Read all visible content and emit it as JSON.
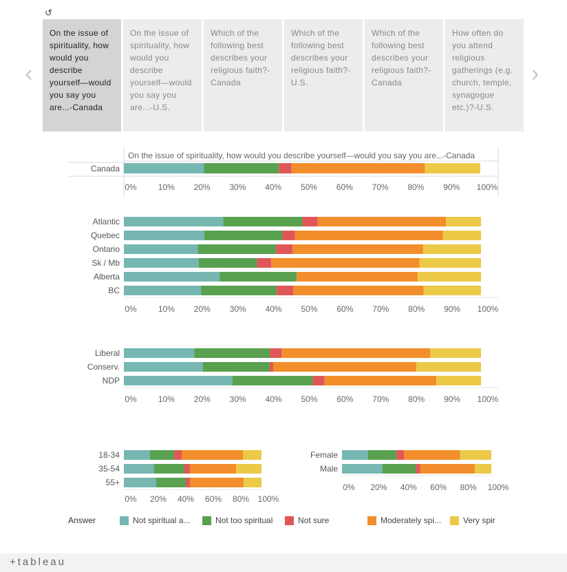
{
  "toolbar": {
    "revert_icon": "↺"
  },
  "nav": {
    "prev": "‹",
    "next": "›"
  },
  "tabs": [
    {
      "label": "On the issue of spirituality, how would you describe yourself—would you say you are...-Canada",
      "active": true
    },
    {
      "label": "On the issue of spirituality, how would you describe yourself—would you say you are...-U.S.",
      "active": false
    },
    {
      "label": "Which of the following best describes your religious faith?-Canada",
      "active": false
    },
    {
      "label": "Which of the following best describes your religious faith?-U.S.",
      "active": false
    },
    {
      "label": "Which of the following best describes your religious faith?-Canada",
      "active": false
    },
    {
      "label": "How often do you attend religious gatherings (e.g. church, temple, synagogue etc.)?-U.S.",
      "active": false
    }
  ],
  "legend": {
    "title": "Answer",
    "items": [
      {
        "label": "Not spiritual a...",
        "color": "#76b7b2"
      },
      {
        "label": "Not too spiritual",
        "color": "#59a14f"
      },
      {
        "label": "Not sure",
        "color": "#e15759"
      },
      {
        "label": "Moderately spi...",
        "color": "#f28e2b"
      },
      {
        "label": "Very spir",
        "color": "#edc948"
      }
    ]
  },
  "chart_data": [
    {
      "type": "bar",
      "stacked": true,
      "orientation": "horizontal",
      "title": "On the issue of spirituality, how would you describe yourself—would you say you are...-Canada",
      "categories": [
        "Canada"
      ],
      "series": [
        {
          "name": "Not spiritual a...",
          "values": [
            22.5
          ]
        },
        {
          "name": "Not too spiritual",
          "values": [
            21
          ]
        },
        {
          "name": "Not sure",
          "values": [
            3.5
          ]
        },
        {
          "name": "Moderately spi...",
          "values": [
            37.5
          ]
        },
        {
          "name": "Very spir",
          "values": [
            15.5
          ]
        }
      ],
      "ticks": [
        "0%",
        "10%",
        "20%",
        "30%",
        "40%",
        "50%",
        "60%",
        "70%",
        "80%",
        "90%",
        "100%"
      ],
      "xlim": [
        0,
        100
      ]
    },
    {
      "type": "bar",
      "stacked": true,
      "orientation": "horizontal",
      "categories": [
        "Atlantic",
        "Quebec",
        "Ontario",
        "Sk / Mb",
        "Alberta",
        "BC"
      ],
      "series": [
        {
          "name": "Not spiritual a...",
          "values": [
            27.8,
            22.5,
            20.7,
            21,
            26.8,
            21.6
          ]
        },
        {
          "name": "Not too spiritual",
          "values": [
            22.2,
            21.9,
            21.9,
            16.3,
            21.6,
            21.2
          ]
        },
        {
          "name": "Not sure",
          "values": [
            4.3,
            3.5,
            4.6,
            4,
            0,
            4.6
          ]
        },
        {
          "name": "Moderately spi...",
          "values": [
            35.9,
            41.4,
            36.6,
            41.5,
            33.9,
            36.5
          ]
        },
        {
          "name": "Very spir",
          "values": [
            9.8,
            10.7,
            16.2,
            17.2,
            17.7,
            16.1
          ]
        }
      ],
      "ticks": [
        "0%",
        "10%",
        "20%",
        "30%",
        "40%",
        "50%",
        "60%",
        "70%",
        "80%",
        "90%",
        "100%"
      ],
      "xlim": [
        0,
        100
      ]
    },
    {
      "type": "bar",
      "stacked": true,
      "orientation": "horizontal",
      "categories": [
        "Liberal",
        "Conserv.",
        "NDP"
      ],
      "series": [
        {
          "name": "Not spiritual a...",
          "values": [
            19.7,
            22.1,
            30.4
          ]
        },
        {
          "name": "Not too spiritual",
          "values": [
            21.2,
            18.7,
            22.5
          ]
        },
        {
          "name": "Not sure",
          "values": [
            3.3,
            1,
            3.3
          ]
        },
        {
          "name": "Moderately spi...",
          "values": [
            41.6,
            40.1,
            31.3
          ]
        },
        {
          "name": "Very spir",
          "values": [
            14.2,
            18.1,
            12.5
          ]
        }
      ],
      "ticks": [
        "0%",
        "10%",
        "20%",
        "30%",
        "40%",
        "50%",
        "60%",
        "70%",
        "80%",
        "90%",
        "100%"
      ],
      "xlim": [
        0,
        100
      ]
    },
    {
      "type": "bar",
      "stacked": true,
      "orientation": "horizontal",
      "categories": [
        "18-34",
        "35-54",
        "55+"
      ],
      "series": [
        {
          "name": "Not spiritual a...",
          "values": [
            19,
            22,
            23.5
          ]
        },
        {
          "name": "Not too spiritual",
          "values": [
            17.5,
            22,
            21.5
          ]
        },
        {
          "name": "Not sure",
          "values": [
            5.5,
            4,
            3
          ]
        },
        {
          "name": "Moderately spi...",
          "values": [
            44.5,
            33.5,
            39
          ]
        },
        {
          "name": "Very spir",
          "values": [
            13.5,
            18.5,
            13
          ]
        }
      ],
      "ticks": [
        "0%",
        "20%",
        "40%",
        "60%",
        "80%",
        "100%"
      ],
      "xlim": [
        0,
        100
      ]
    },
    {
      "type": "bar",
      "stacked": true,
      "orientation": "horizontal",
      "categories": [
        "Female",
        "Male"
      ],
      "series": [
        {
          "name": "Not spiritual a...",
          "values": [
            17.5,
            27
          ]
        },
        {
          "name": "Not too spiritual",
          "values": [
            19,
            22.5
          ]
        },
        {
          "name": "Not sure",
          "values": [
            5,
            3
          ]
        },
        {
          "name": "Moderately spi...",
          "values": [
            37.5,
            36.5
          ]
        },
        {
          "name": "Very spir",
          "values": [
            21,
            11
          ]
        }
      ],
      "ticks": [
        "0%",
        "20%",
        "40%",
        "60%",
        "80%",
        "100%"
      ],
      "xlim": [
        0,
        100
      ]
    }
  ],
  "footer": {
    "logo": "+tableau"
  }
}
